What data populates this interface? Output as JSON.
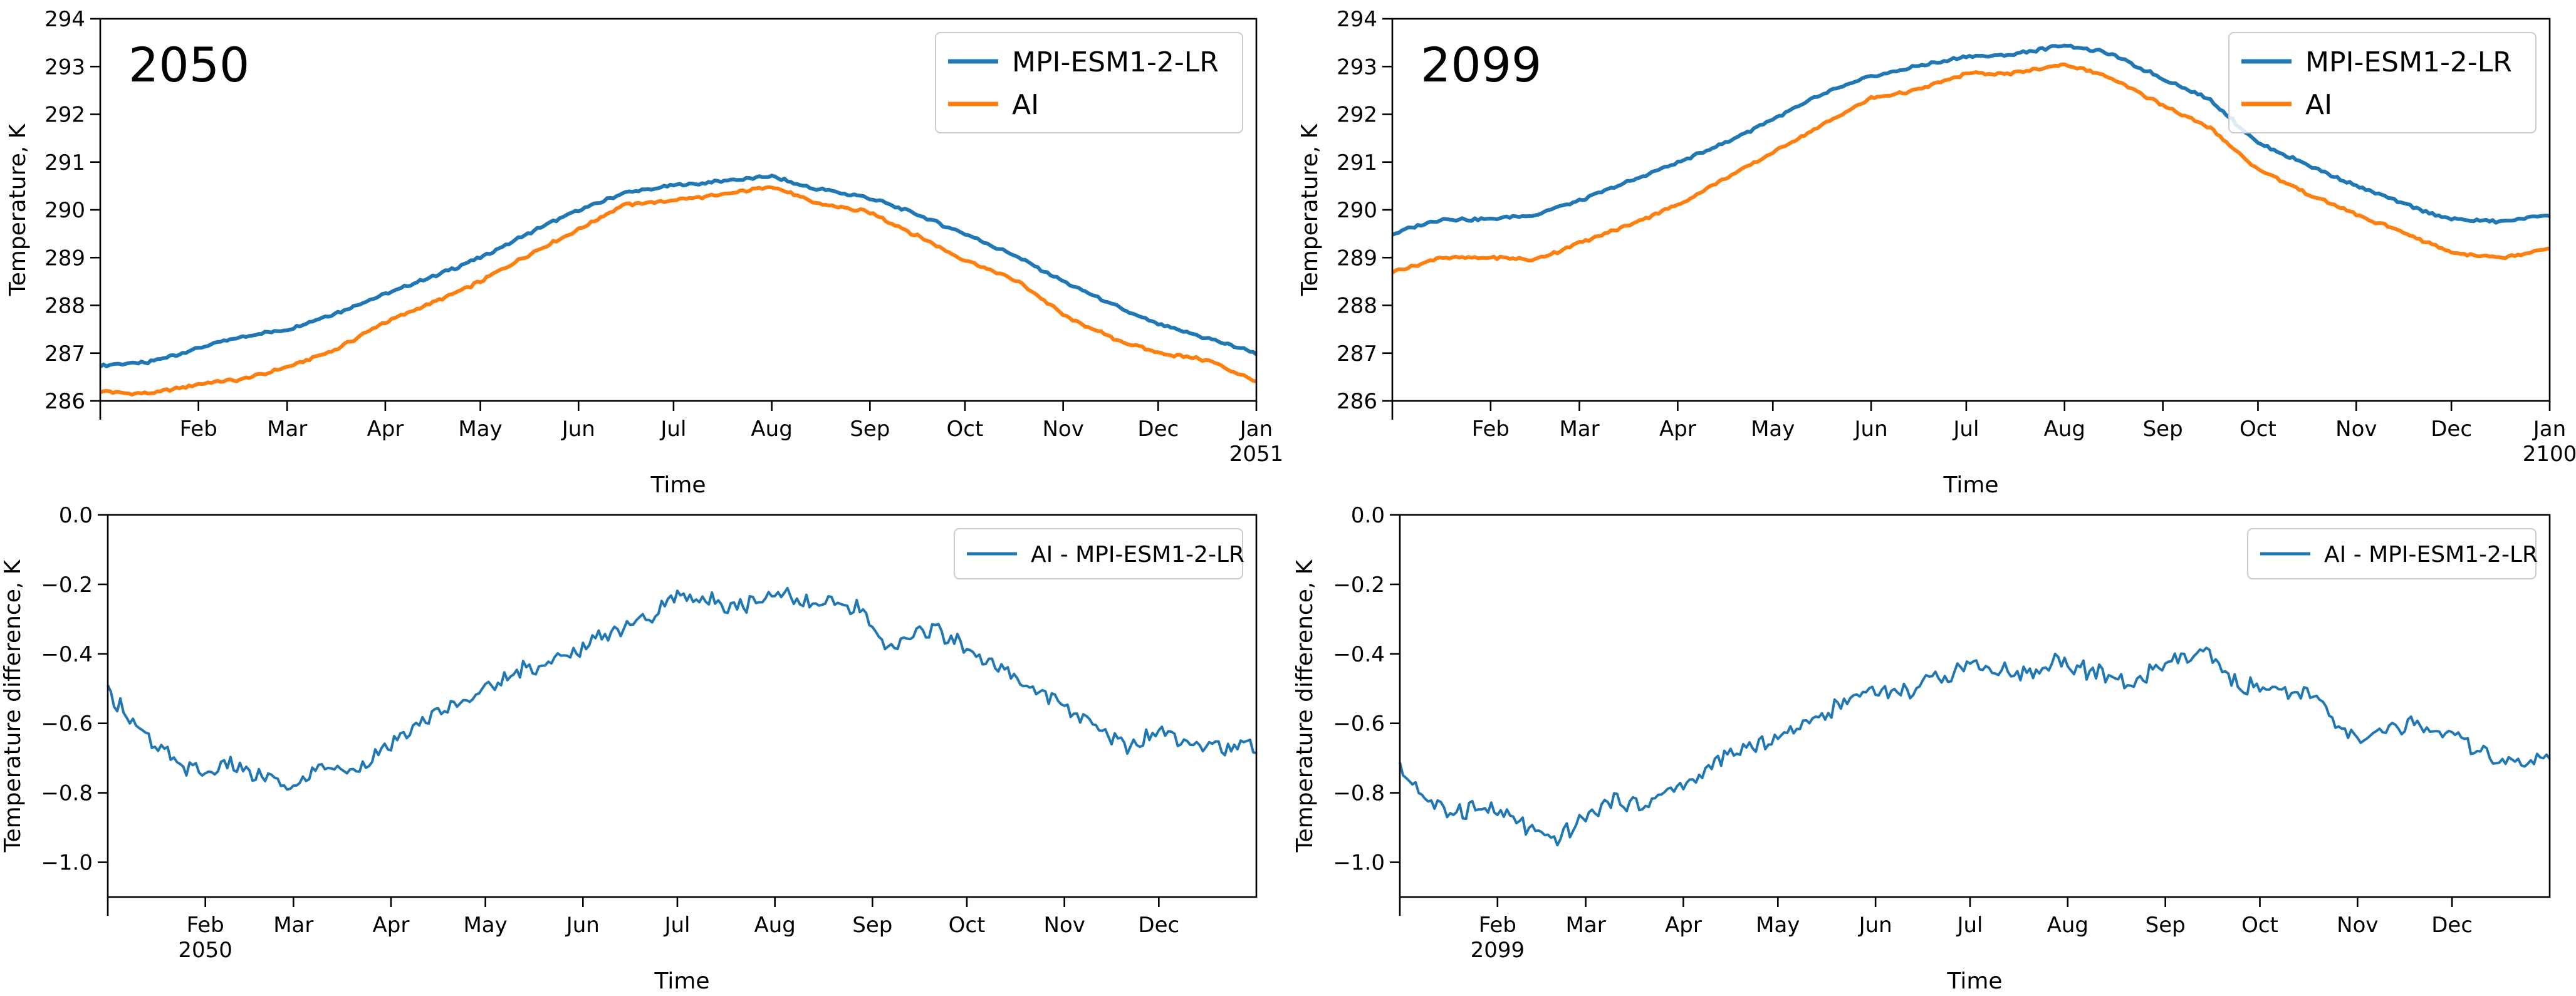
{
  "figure": {
    "background": "#ffffff"
  },
  "chart_data": [
    {
      "id": "temp-2050",
      "type": "line",
      "title": "2050",
      "xlabel": "Time",
      "ylabel": "Temperature, K",
      "ylim": [
        286,
        294
      ],
      "yticks": [
        "286",
        "287",
        "288",
        "289",
        "290",
        "291",
        "292",
        "293",
        "294"
      ],
      "xlim_days": [
        0,
        365
      ],
      "xticks": [
        {
          "day": 31,
          "label": "Feb"
        },
        {
          "day": 59,
          "label": "Mar"
        },
        {
          "day": 90,
          "label": "Apr"
        },
        {
          "day": 120,
          "label": "May"
        },
        {
          "day": 151,
          "label": "Jun"
        },
        {
          "day": 181,
          "label": "Jul"
        },
        {
          "day": 212,
          "label": "Aug"
        },
        {
          "day": 243,
          "label": "Sep"
        },
        {
          "day": 273,
          "label": "Oct"
        },
        {
          "day": 304,
          "label": "Nov"
        },
        {
          "day": 334,
          "label": "Dec"
        },
        {
          "day": 365,
          "label": "Jan"
        }
      ],
      "x_offset_label": "2051",
      "legend": "top-right",
      "grid": false,
      "series": [
        {
          "name": "MPI-ESM1-2-LR",
          "color": "#1f77b4",
          "points": [
            [
              0,
              286.75
            ],
            [
              15,
              286.8
            ],
            [
              31,
              287.1
            ],
            [
              45,
              287.35
            ],
            [
              59,
              287.5
            ],
            [
              75,
              287.85
            ],
            [
              90,
              288.25
            ],
            [
              105,
              288.6
            ],
            [
              120,
              289.0
            ],
            [
              135,
              289.5
            ],
            [
              151,
              290.0
            ],
            [
              165,
              290.35
            ],
            [
              181,
              290.5
            ],
            [
              195,
              290.6
            ],
            [
              212,
              290.7
            ],
            [
              225,
              290.45
            ],
            [
              243,
              290.25
            ],
            [
              258,
              289.9
            ],
            [
              273,
              289.5
            ],
            [
              290,
              289.0
            ],
            [
              304,
              288.5
            ],
            [
              320,
              288.0
            ],
            [
              334,
              287.6
            ],
            [
              350,
              287.3
            ],
            [
              365,
              287.0
            ]
          ]
        },
        {
          "name": "AI",
          "color": "#ff7f0e",
          "points": [
            [
              0,
              286.2
            ],
            [
              15,
              286.15
            ],
            [
              31,
              286.35
            ],
            [
              45,
              286.45
            ],
            [
              59,
              286.7
            ],
            [
              75,
              287.1
            ],
            [
              90,
              287.65
            ],
            [
              105,
              288.05
            ],
            [
              120,
              288.5
            ],
            [
              135,
              289.05
            ],
            [
              151,
              289.6
            ],
            [
              165,
              290.1
            ],
            [
              181,
              290.2
            ],
            [
              195,
              290.3
            ],
            [
              212,
              290.5
            ],
            [
              225,
              290.15
            ],
            [
              243,
              289.95
            ],
            [
              258,
              289.45
            ],
            [
              273,
              288.95
            ],
            [
              290,
              288.5
            ],
            [
              304,
              287.8
            ],
            [
              320,
              287.3
            ],
            [
              334,
              287.0
            ],
            [
              350,
              286.85
            ],
            [
              365,
              286.4
            ]
          ]
        }
      ]
    },
    {
      "id": "temp-2099",
      "type": "line",
      "title": "2099",
      "xlabel": "Time",
      "ylabel": "Temperature, K",
      "ylim": [
        286,
        294
      ],
      "yticks": [
        "286",
        "287",
        "288",
        "289",
        "290",
        "291",
        "292",
        "293",
        "294"
      ],
      "xlim_days": [
        0,
        365
      ],
      "xticks": [
        {
          "day": 31,
          "label": "Feb"
        },
        {
          "day": 59,
          "label": "Mar"
        },
        {
          "day": 90,
          "label": "Apr"
        },
        {
          "day": 120,
          "label": "May"
        },
        {
          "day": 151,
          "label": "Jun"
        },
        {
          "day": 181,
          "label": "Jul"
        },
        {
          "day": 212,
          "label": "Aug"
        },
        {
          "day": 243,
          "label": "Sep"
        },
        {
          "day": 273,
          "label": "Oct"
        },
        {
          "day": 304,
          "label": "Nov"
        },
        {
          "day": 334,
          "label": "Dec"
        },
        {
          "day": 365,
          "label": "Jan"
        }
      ],
      "x_offset_label": "2100",
      "legend": "top-right",
      "grid": false,
      "series": [
        {
          "name": "MPI-ESM1-2-LR",
          "color": "#1f77b4",
          "points": [
            [
              0,
              289.5
            ],
            [
              15,
              289.8
            ],
            [
              31,
              289.8
            ],
            [
              45,
              289.9
            ],
            [
              59,
              290.2
            ],
            [
              75,
              290.6
            ],
            [
              90,
              291.0
            ],
            [
              105,
              291.4
            ],
            [
              120,
              291.9
            ],
            [
              135,
              292.4
            ],
            [
              151,
              292.8
            ],
            [
              165,
              293.0
            ],
            [
              181,
              293.2
            ],
            [
              195,
              293.25
            ],
            [
              212,
              293.45
            ],
            [
              225,
              293.3
            ],
            [
              243,
              292.75
            ],
            [
              258,
              292.3
            ],
            [
              273,
              291.4
            ],
            [
              290,
              290.9
            ],
            [
              304,
              290.5
            ],
            [
              320,
              290.1
            ],
            [
              334,
              289.8
            ],
            [
              350,
              289.75
            ],
            [
              365,
              289.9
            ]
          ]
        },
        {
          "name": "AI",
          "color": "#ff7f0e",
          "points": [
            [
              0,
              288.7
            ],
            [
              15,
              289.0
            ],
            [
              31,
              289.0
            ],
            [
              45,
              288.95
            ],
            [
              59,
              289.3
            ],
            [
              75,
              289.7
            ],
            [
              90,
              290.1
            ],
            [
              105,
              290.65
            ],
            [
              120,
              291.2
            ],
            [
              135,
              291.75
            ],
            [
              151,
              292.35
            ],
            [
              165,
              292.5
            ],
            [
              181,
              292.85
            ],
            [
              195,
              292.85
            ],
            [
              212,
              293.05
            ],
            [
              225,
              292.8
            ],
            [
              243,
              292.2
            ],
            [
              258,
              291.7
            ],
            [
              273,
              290.85
            ],
            [
              290,
              290.3
            ],
            [
              304,
              289.9
            ],
            [
              320,
              289.5
            ],
            [
              334,
              289.1
            ],
            [
              350,
              289.0
            ],
            [
              365,
              289.2
            ]
          ]
        }
      ]
    },
    {
      "id": "diff-2050",
      "type": "line",
      "title": "",
      "xlabel": "Time",
      "ylabel": "Temperature difference, K",
      "ylim": [
        -1.1,
        0.0
      ],
      "yticks": [
        "−1.0",
        "−0.8",
        "−0.6",
        "−0.4",
        "−0.2",
        "0.0"
      ],
      "xlim_days": [
        0,
        365
      ],
      "xticks": [
        {
          "day": 31,
          "label": "Feb"
        },
        {
          "day": 59,
          "label": "Mar"
        },
        {
          "day": 90,
          "label": "Apr"
        },
        {
          "day": 120,
          "label": "May"
        },
        {
          "day": 151,
          "label": "Jun"
        },
        {
          "day": 181,
          "label": "Jul"
        },
        {
          "day": 212,
          "label": "Aug"
        },
        {
          "day": 243,
          "label": "Sep"
        },
        {
          "day": 273,
          "label": "Oct"
        },
        {
          "day": 304,
          "label": "Nov"
        },
        {
          "day": 334,
          "label": "Dec"
        }
      ],
      "x_offset_label": "2050",
      "legend": "top-right",
      "grid": false,
      "series": [
        {
          "name": "AI - MPI-ESM1-2-LR",
          "color": "#1f77b4",
          "points": [
            [
              0,
              -0.5
            ],
            [
              8,
              -0.6
            ],
            [
              16,
              -0.68
            ],
            [
              24,
              -0.72
            ],
            [
              31,
              -0.75
            ],
            [
              40,
              -0.72
            ],
            [
              50,
              -0.76
            ],
            [
              59,
              -0.78
            ],
            [
              68,
              -0.72
            ],
            [
              76,
              -0.74
            ],
            [
              84,
              -0.7
            ],
            [
              92,
              -0.64
            ],
            [
              100,
              -0.6
            ],
            [
              108,
              -0.56
            ],
            [
              116,
              -0.52
            ],
            [
              124,
              -0.48
            ],
            [
              132,
              -0.44
            ],
            [
              140,
              -0.43
            ],
            [
              148,
              -0.4
            ],
            [
              156,
              -0.34
            ],
            [
              164,
              -0.32
            ],
            [
              172,
              -0.3
            ],
            [
              181,
              -0.24
            ],
            [
              190,
              -0.24
            ],
            [
              200,
              -0.26
            ],
            [
              208,
              -0.24
            ],
            [
              216,
              -0.22
            ],
            [
              224,
              -0.26
            ],
            [
              232,
              -0.26
            ],
            [
              240,
              -0.28
            ],
            [
              248,
              -0.4
            ],
            [
              256,
              -0.34
            ],
            [
              264,
              -0.33
            ],
            [
              273,
              -0.38
            ],
            [
              282,
              -0.44
            ],
            [
              290,
              -0.48
            ],
            [
              298,
              -0.52
            ],
            [
              304,
              -0.55
            ],
            [
              314,
              -0.62
            ],
            [
              324,
              -0.66
            ],
            [
              334,
              -0.62
            ],
            [
              342,
              -0.65
            ],
            [
              350,
              -0.66
            ],
            [
              358,
              -0.68
            ],
            [
              365,
              -0.66
            ]
          ]
        }
      ]
    },
    {
      "id": "diff-2099",
      "type": "line",
      "title": "",
      "xlabel": "Time",
      "ylabel": "Temperature difference, K",
      "ylim": [
        -1.1,
        0.0
      ],
      "yticks": [
        "−1.0",
        "−0.8",
        "−0.6",
        "−0.4",
        "−0.2",
        "0.0"
      ],
      "xlim_days": [
        0,
        365
      ],
      "xticks": [
        {
          "day": 31,
          "label": "Feb"
        },
        {
          "day": 59,
          "label": "Mar"
        },
        {
          "day": 90,
          "label": "Apr"
        },
        {
          "day": 120,
          "label": "May"
        },
        {
          "day": 151,
          "label": "Jun"
        },
        {
          "day": 181,
          "label": "Jul"
        },
        {
          "day": 212,
          "label": "Aug"
        },
        {
          "day": 243,
          "label": "Sep"
        },
        {
          "day": 273,
          "label": "Oct"
        },
        {
          "day": 304,
          "label": "Nov"
        },
        {
          "day": 334,
          "label": "Dec"
        }
      ],
      "x_offset_label": "2099",
      "legend": "top-right",
      "grid": false,
      "series": [
        {
          "name": "AI - MPI-ESM1-2-LR",
          "color": "#1f77b4",
          "points": [
            [
              0,
              -0.72
            ],
            [
              8,
              -0.82
            ],
            [
              16,
              -0.86
            ],
            [
              24,
              -0.84
            ],
            [
              31,
              -0.86
            ],
            [
              40,
              -0.9
            ],
            [
              50,
              -0.94
            ],
            [
              59,
              -0.86
            ],
            [
              68,
              -0.82
            ],
            [
              76,
              -0.84
            ],
            [
              84,
              -0.8
            ],
            [
              92,
              -0.76
            ],
            [
              100,
              -0.72
            ],
            [
              108,
              -0.68
            ],
            [
              116,
              -0.66
            ],
            [
              124,
              -0.62
            ],
            [
              132,
              -0.58
            ],
            [
              140,
              -0.55
            ],
            [
              148,
              -0.5
            ],
            [
              156,
              -0.5
            ],
            [
              164,
              -0.5
            ],
            [
              172,
              -0.46
            ],
            [
              181,
              -0.44
            ],
            [
              190,
              -0.44
            ],
            [
              200,
              -0.46
            ],
            [
              208,
              -0.42
            ],
            [
              216,
              -0.44
            ],
            [
              224,
              -0.46
            ],
            [
              232,
              -0.5
            ],
            [
              240,
              -0.44
            ],
            [
              248,
              -0.42
            ],
            [
              256,
              -0.4
            ],
            [
              264,
              -0.48
            ],
            [
              273,
              -0.5
            ],
            [
              282,
              -0.52
            ],
            [
              290,
              -0.52
            ],
            [
              298,
              -0.6
            ],
            [
              304,
              -0.66
            ],
            [
              314,
              -0.62
            ],
            [
              324,
              -0.6
            ],
            [
              334,
              -0.64
            ],
            [
              342,
              -0.68
            ],
            [
              350,
              -0.72
            ],
            [
              358,
              -0.72
            ],
            [
              365,
              -0.7
            ]
          ]
        }
      ]
    }
  ]
}
